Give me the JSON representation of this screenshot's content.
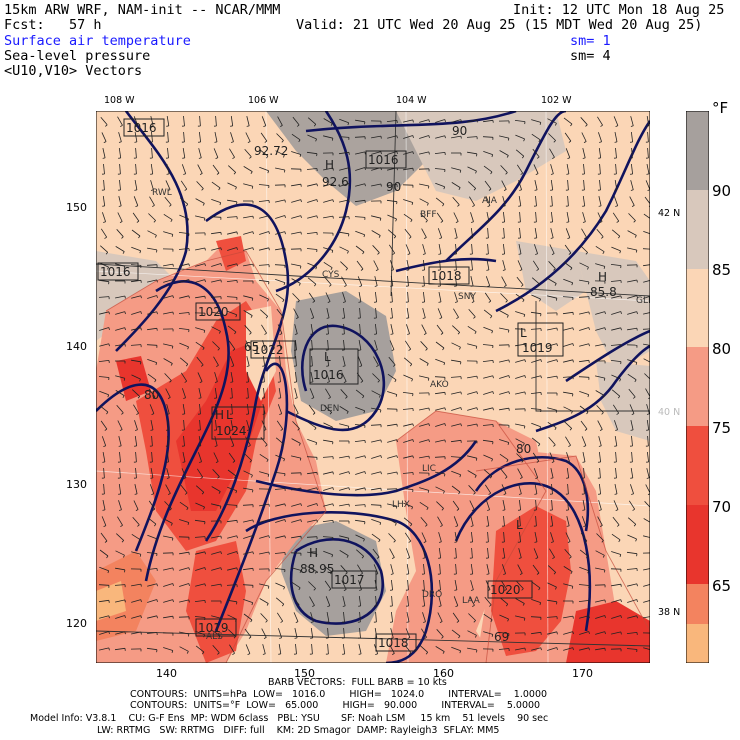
{
  "header": {
    "model_line": "15km ARW WRF, NAM-init -- NCAR/MMM",
    "init_line": "Init: 12 UTC Mon 18 Aug 25",
    "fcst_line": "Fcst:   57 h",
    "valid_line": "Valid: 21 UTC Wed 20 Aug 25 (15 MDT Wed 20 Aug 25)",
    "field1": "Surface air temperature",
    "field2": "Sea-level pressure",
    "field3": "<U10,V10> Vectors",
    "sm1": "sm= 1",
    "sm2": "sm= 4"
  },
  "axes": {
    "top_lon": [
      "108 W",
      "106 W",
      "104 W",
      "102 W"
    ],
    "left_y": [
      "150",
      "140",
      "130",
      "120"
    ],
    "bottom_x": [
      "140",
      "150",
      "160",
      "170"
    ],
    "right_lat": [
      "42 N",
      "40 N",
      "38 N"
    ]
  },
  "colorbar": {
    "unit": "°F",
    "levels": [
      "90",
      "85",
      "80",
      "75",
      "70",
      "65"
    ],
    "colors": [
      "#a6a09d",
      "#d8c8bc",
      "#fbd6b6",
      "#f59b85",
      "#ef4f3e",
      "#e8352d",
      "#f3835f",
      "#f9b77c"
    ]
  },
  "map_labels": {
    "pressure": [
      "1016",
      "1016",
      "1016",
      "1018",
      "1019",
      "1020",
      "1022",
      "1016",
      "1024",
      "1020",
      "1017",
      "1019",
      "1018"
    ],
    "hl": [
      "H",
      "L",
      "H",
      "L",
      "L",
      "H",
      "L",
      "H"
    ],
    "values": [
      "92.6",
      "92.72",
      "85.8",
      "65",
      "80",
      "90",
      "90",
      "80",
      "88.95",
      "69"
    ],
    "stations": [
      "RWL",
      "BFF",
      "AIA",
      "CYS",
      "SNY",
      "DEN",
      "AKO",
      "LIC",
      "DRO",
      "LAA",
      "LHX",
      "ALS",
      "GLD"
    ]
  },
  "footer": {
    "barb": "BARB VECTORS:  FULL BARB = 10 kts",
    "contours1": "CONTOURS:  UNITS=hPa  LOW=   1016.0        HIGH=   1024.0        INTERVAL=    1.0000",
    "contours2": "CONTOURS:  UNITS=°F  LOW=   65.000        HIGH=   90.000        INTERVAL=    5.0000",
    "model_info1": "Model Info: V3.8.1    CU: G-F Ens  MP: WDM 6class   PBL: YSU       SF: Noah LSM     15 km    51 levels    90 sec",
    "model_info2": "LW: RRTMG   SW: RRTMG   DIFF: full    KM: 2D Smagor  DAMP: Rayleigh3  SFLAY: MM5"
  }
}
